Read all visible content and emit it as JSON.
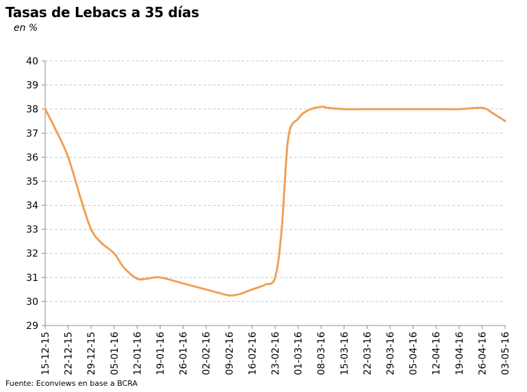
{
  "title": "Tasas de Lebacs a 35 días",
  "subtitle": "en %",
  "source": "Fuente: Econviews en base a BCRA",
  "colors": {
    "line": "#F0A055",
    "grid": "#C8C8C8",
    "axis": "#888888"
  },
  "chart_data": {
    "type": "line",
    "title": "Tasas de Lebacs a 35 días",
    "ylabel": "en %",
    "ylim": [
      29,
      40
    ],
    "yticks": [
      29,
      30,
      31,
      32,
      33,
      34,
      35,
      36,
      37,
      38,
      39,
      40
    ],
    "grid": true,
    "x_tick_labels": [
      "15-12-15",
      "22-12-15",
      "29-12-15",
      "05-01-16",
      "12-01-16",
      "19-01-16",
      "26-01-16",
      "02-02-16",
      "09-02-16",
      "16-02-16",
      "23-02-16",
      "01-03-16",
      "08-03-16",
      "15-03-16",
      "22-03-16",
      "29-03-16",
      "05-04-16",
      "12-04-16",
      "19-04-16",
      "26-04-16",
      "03-05-16"
    ],
    "x": [
      "2015-12-15",
      "2015-12-18",
      "2015-12-22",
      "2015-12-26",
      "2015-12-29",
      "2016-01-01",
      "2016-01-05",
      "2016-01-08",
      "2016-01-12",
      "2016-01-15",
      "2016-01-19",
      "2016-01-26",
      "2016-02-02",
      "2016-02-06",
      "2016-02-09",
      "2016-02-12",
      "2016-02-16",
      "2016-02-20",
      "2016-02-23",
      "2016-02-25",
      "2016-02-27",
      "2016-03-01",
      "2016-03-04",
      "2016-03-08",
      "2016-03-10",
      "2016-03-15",
      "2016-03-22",
      "2016-03-29",
      "2016-04-05",
      "2016-04-12",
      "2016-04-19",
      "2016-04-26",
      "2016-04-29",
      "2016-05-03"
    ],
    "series": [
      {
        "values": [
          38.0,
          37.2,
          36.0,
          34.2,
          33.0,
          32.45,
          32.0,
          31.4,
          30.95,
          30.95,
          31.0,
          30.75,
          30.5,
          30.35,
          30.25,
          30.3,
          30.5,
          30.7,
          31.0,
          33.0,
          36.8,
          37.6,
          37.95,
          38.1,
          38.05,
          38.0,
          38.0,
          38.0,
          38.0,
          38.0,
          38.0,
          38.05,
          37.85,
          37.5
        ]
      }
    ]
  }
}
